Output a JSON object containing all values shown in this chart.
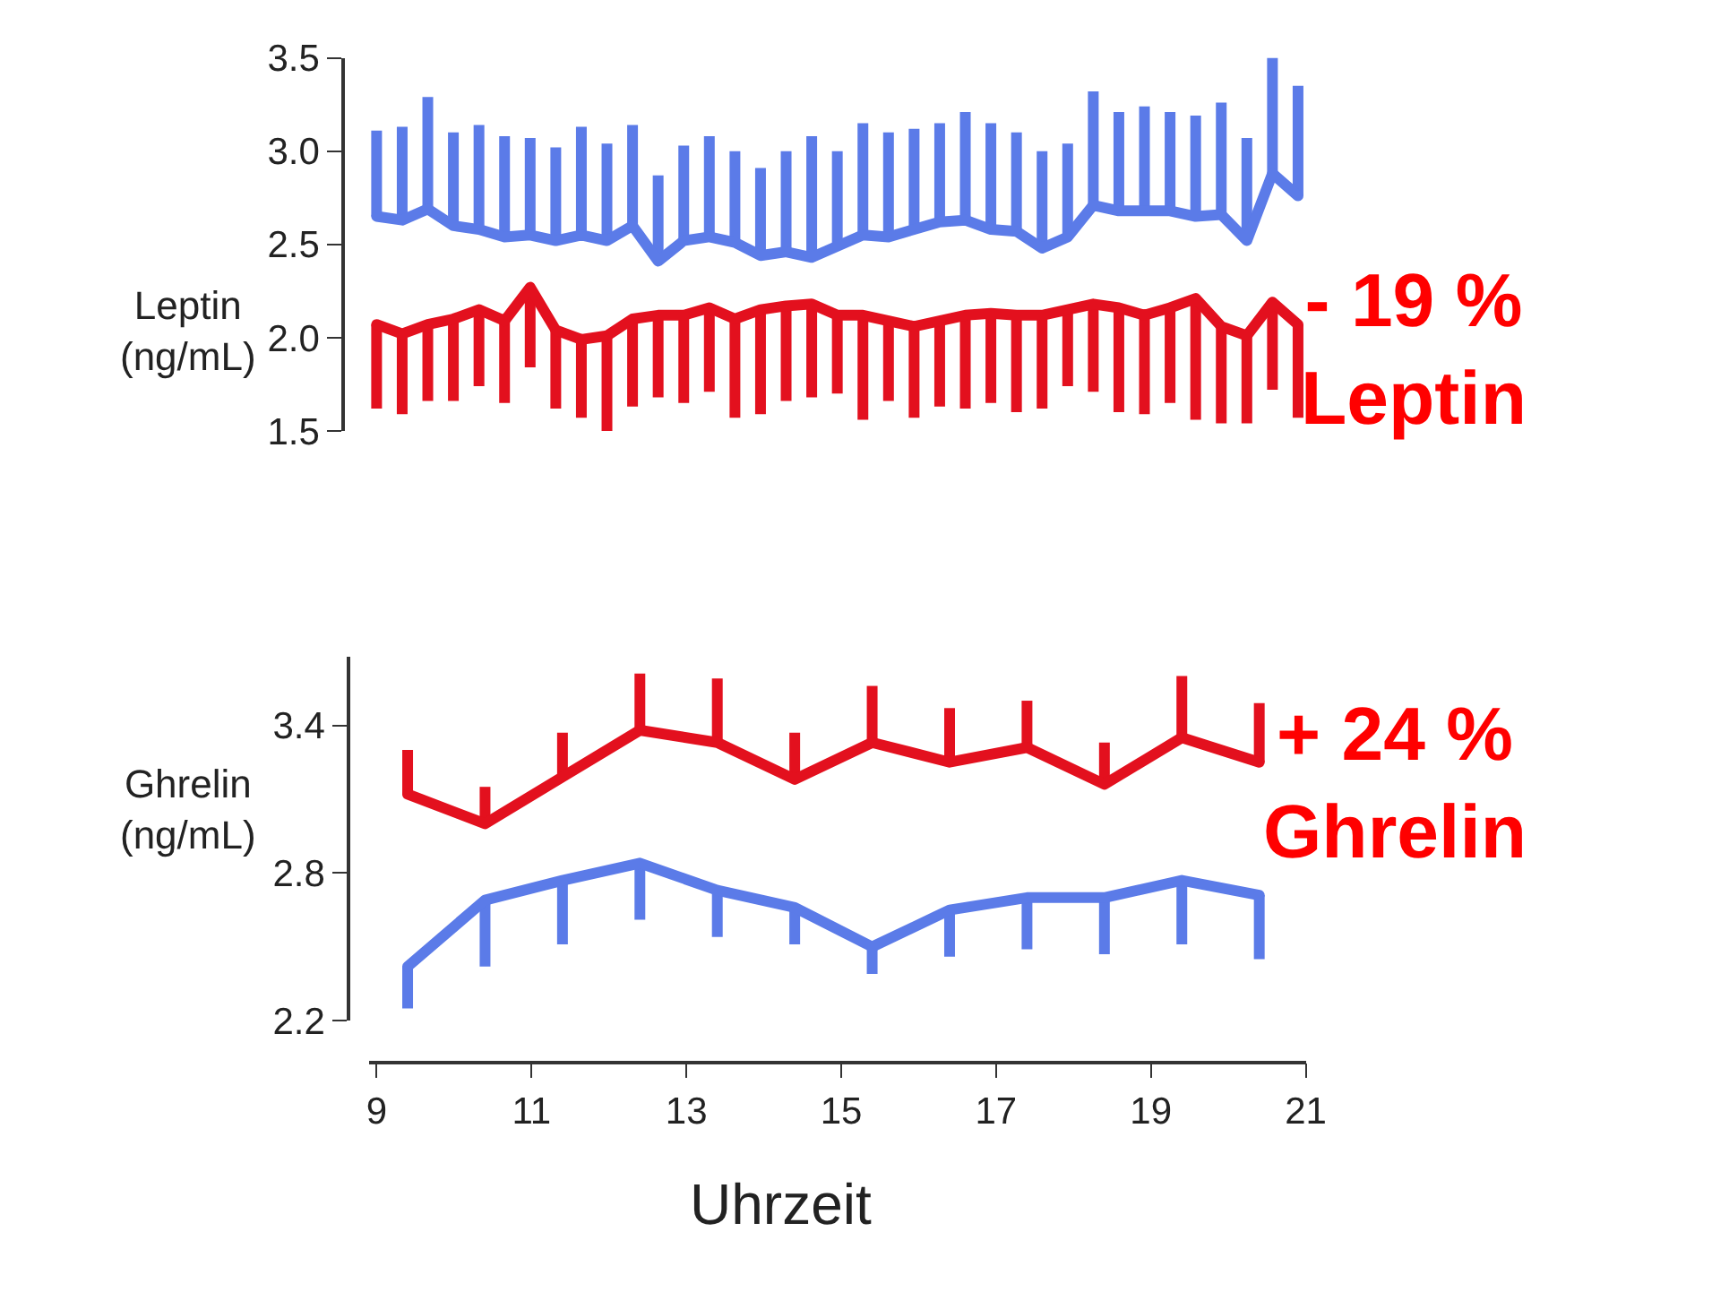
{
  "chart_data": [
    {
      "type": "line",
      "ylabel": "Leptin\n(ng/mL)",
      "tick_labels": "y",
      "ylim": [
        1.5,
        3.5
      ],
      "yticks": [
        {
          "value": 1.5,
          "label": "1.5"
        },
        {
          "value": 2.0,
          "label": "2.0"
        },
        {
          "value": 2.5,
          "label": "2.5"
        },
        {
          "value": 3.0,
          "label": "3.0"
        },
        {
          "value": 3.5,
          "label": "3.5"
        }
      ],
      "marker": "none",
      "categories": [
        null,
        null,
        null,
        null,
        null,
        null,
        null,
        null,
        null,
        null,
        null,
        null,
        null,
        null,
        null,
        null,
        null,
        null,
        null,
        null,
        null,
        null,
        null,
        null,
        null,
        null,
        null,
        null,
        null,
        null,
        null,
        null,
        null,
        null,
        null,
        null,
        null
      ],
      "annotations": [
        "- 19 %\nLeptin"
      ],
      "series": [
        {
          "color": "#5b7be8",
          "values": [
            2.65,
            2.63,
            2.69,
            2.6,
            2.58,
            2.54,
            2.55,
            2.52,
            2.55,
            2.52,
            2.6,
            2.41,
            2.52,
            2.54,
            2.51,
            2.44,
            2.46,
            2.43,
            2.49,
            2.55,
            2.54,
            2.58,
            2.62,
            2.63,
            2.58,
            2.57,
            2.48,
            2.54,
            2.71,
            2.68,
            2.68,
            2.68,
            2.65,
            2.66,
            2.52,
            2.88,
            2.76
          ],
          "errors": [
            [
              2.65,
              3.11
            ],
            [
              2.63,
              3.13
            ],
            [
              2.69,
              3.29
            ],
            [
              2.6,
              3.1
            ],
            [
              2.58,
              3.14
            ],
            [
              2.54,
              3.08
            ],
            [
              2.55,
              3.07
            ],
            [
              2.52,
              3.02
            ],
            [
              2.55,
              3.13
            ],
            [
              2.52,
              3.04
            ],
            [
              2.6,
              3.14
            ],
            [
              2.41,
              2.87
            ],
            [
              2.52,
              3.03
            ],
            [
              2.54,
              3.08
            ],
            [
              2.51,
              3.0
            ],
            [
              2.44,
              2.91
            ],
            [
              2.46,
              3.0
            ],
            [
              2.43,
              3.08
            ],
            [
              2.49,
              3.0
            ],
            [
              2.55,
              3.15
            ],
            [
              2.54,
              3.1
            ],
            [
              2.58,
              3.12
            ],
            [
              2.62,
              3.15
            ],
            [
              2.63,
              3.21
            ],
            [
              2.58,
              3.15
            ],
            [
              2.57,
              3.1
            ],
            [
              2.48,
              3.0
            ],
            [
              2.54,
              3.04
            ],
            [
              2.71,
              3.32
            ],
            [
              2.68,
              3.21
            ],
            [
              2.68,
              3.24
            ],
            [
              2.68,
              3.21
            ],
            [
              2.65,
              3.19
            ],
            [
              2.66,
              3.26
            ],
            [
              2.52,
              3.07
            ],
            [
              2.88,
              3.5
            ],
            [
              2.76,
              3.35
            ]
          ]
        },
        {
          "color": "#e3101e",
          "values": [
            2.07,
            2.02,
            2.07,
            2.1,
            2.15,
            2.09,
            2.27,
            2.04,
            1.99,
            2.01,
            2.1,
            2.12,
            2.12,
            2.16,
            2.1,
            2.15,
            2.17,
            2.18,
            2.12,
            2.12,
            2.09,
            2.06,
            2.09,
            2.12,
            2.13,
            2.12,
            2.12,
            2.15,
            2.18,
            2.16,
            2.12,
            2.16,
            2.21,
            2.06,
            2.01,
            2.19,
            2.07
          ],
          "errors": [
            [
              1.62,
              2.07
            ],
            [
              1.59,
              2.02
            ],
            [
              1.66,
              2.07
            ],
            [
              1.66,
              2.1
            ],
            [
              1.74,
              2.15
            ],
            [
              1.65,
              2.09
            ],
            [
              1.84,
              2.27
            ],
            [
              1.62,
              2.04
            ],
            [
              1.57,
              1.99
            ],
            [
              1.5,
              2.01
            ],
            [
              1.63,
              2.1
            ],
            [
              1.68,
              2.12
            ],
            [
              1.65,
              2.12
            ],
            [
              1.71,
              2.16
            ],
            [
              1.57,
              2.1
            ],
            [
              1.59,
              2.15
            ],
            [
              1.66,
              2.17
            ],
            [
              1.68,
              2.18
            ],
            [
              1.7,
              2.12
            ],
            [
              1.56,
              2.12
            ],
            [
              1.66,
              2.09
            ],
            [
              1.57,
              2.06
            ],
            [
              1.63,
              2.09
            ],
            [
              1.62,
              2.12
            ],
            [
              1.65,
              2.13
            ],
            [
              1.6,
              2.12
            ],
            [
              1.62,
              2.12
            ],
            [
              1.74,
              2.15
            ],
            [
              1.71,
              2.18
            ],
            [
              1.6,
              2.16
            ],
            [
              1.59,
              2.12
            ],
            [
              1.65,
              2.16
            ],
            [
              1.56,
              2.21
            ],
            [
              1.54,
              2.06
            ],
            [
              1.54,
              2.01
            ],
            [
              1.72,
              2.19
            ],
            [
              1.57,
              2.07
            ]
          ]
        }
      ]
    },
    {
      "type": "line",
      "ylabel": "Ghrelin\n(ng/mL)",
      "xlabel": "Uhrzeit",
      "xlim": [
        8.9,
        21
      ],
      "xticks": [
        9,
        11,
        13,
        15,
        17,
        19,
        21
      ],
      "ylim": [
        2.2,
        3.68
      ],
      "yticks": [
        {
          "value": 2.2,
          "label": "2.2"
        },
        {
          "value": 2.8,
          "label": "2.8"
        },
        {
          "value": 3.4,
          "label": "3.4"
        }
      ],
      "marker": "none",
      "x": [
        9.4,
        10.4,
        11.4,
        12.4,
        13.4,
        14.4,
        15.4,
        16.4,
        17.4,
        18.4,
        19.4,
        20.4
      ],
      "annotations": [
        "+ 24 %\nGhrelin"
      ],
      "series": [
        {
          "color": "#e3101e",
          "values": [
            3.12,
            3.0,
            3.19,
            3.38,
            3.33,
            3.18,
            3.33,
            3.25,
            3.31,
            3.16,
            3.35,
            3.25
          ],
          "errors": [
            [
              3.12,
              3.3
            ],
            [
              3.0,
              3.15
            ],
            [
              3.19,
              3.37
            ],
            [
              3.38,
              3.61
            ],
            [
              3.33,
              3.59
            ],
            [
              3.18,
              3.37
            ],
            [
              3.33,
              3.56
            ],
            [
              3.25,
              3.47
            ],
            [
              3.31,
              3.5
            ],
            [
              3.16,
              3.33
            ],
            [
              3.35,
              3.6
            ],
            [
              3.25,
              3.49
            ]
          ]
        },
        {
          "color": "#5b7be8",
          "values": [
            2.42,
            2.69,
            2.77,
            2.84,
            2.73,
            2.66,
            2.5,
            2.65,
            2.7,
            2.7,
            2.77,
            2.71
          ],
          "errors": [
            [
              2.25,
              2.42
            ],
            [
              2.42,
              2.69
            ],
            [
              2.51,
              2.77
            ],
            [
              2.61,
              2.84
            ],
            [
              2.54,
              2.73
            ],
            [
              2.51,
              2.66
            ],
            [
              2.39,
              2.5
            ],
            [
              2.46,
              2.65
            ],
            [
              2.49,
              2.7
            ],
            [
              2.47,
              2.7
            ],
            [
              2.51,
              2.77
            ],
            [
              2.45,
              2.71
            ]
          ]
        }
      ]
    }
  ]
}
